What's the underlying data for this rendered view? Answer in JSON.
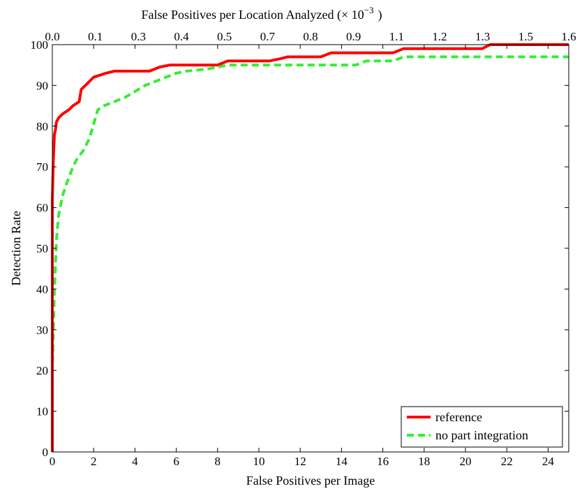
{
  "chart_data": {
    "type": "line",
    "title": "",
    "xlabel": "False Positives per Image",
    "ylabel": "Detection Rate",
    "x2label": "False Positives per Location Analyzed (",
    "x2label_unit": "× 10",
    "x2label_exp": "−3",
    "x2label_close": ")",
    "xlim": [
      0,
      25
    ],
    "ylim": [
      0,
      100
    ],
    "x2lim": [
      0,
      1.6
    ],
    "xticks": [
      "0",
      "2",
      "4",
      "6",
      "8",
      "10",
      "12",
      "14",
      "16",
      "18",
      "20",
      "22",
      "24"
    ],
    "yticks": [
      "0",
      "10",
      "20",
      "30",
      "40",
      "50",
      "60",
      "70",
      "80",
      "90",
      "100"
    ],
    "x2ticks": [
      "0.0",
      "0.1",
      "0.3",
      "0.4",
      "0.5",
      "0.7",
      "0.8",
      "0.9",
      "1.1",
      "1.2",
      "1.3",
      "1.5",
      "1.6"
    ],
    "grid": false,
    "legend_position": "bottom-right",
    "series": [
      {
        "name": "reference",
        "color": "#ff0000",
        "style": "solid",
        "x": [
          0,
          0,
          0.05,
          0.1,
          0.15,
          0.2,
          0.3,
          0.5,
          0.8,
          1.0,
          1.3,
          1.4,
          1.6,
          1.8,
          2.0,
          2.3,
          2.6,
          3.0,
          4.0,
          4.7,
          5.2,
          5.7,
          7.2,
          8.0,
          8.5,
          10.5,
          11.0,
          11.4,
          13.0,
          13.5,
          16.5,
          17.0,
          20.8,
          21.2,
          25.0
        ],
        "y": [
          0,
          62,
          72,
          78,
          79,
          81,
          82,
          83,
          84,
          85,
          86,
          89,
          90,
          91,
          92,
          92.5,
          93,
          93.5,
          93.5,
          93.5,
          94.5,
          95,
          95,
          95,
          96,
          96,
          96.5,
          97,
          97,
          98,
          98,
          99,
          99,
          100,
          100
        ]
      },
      {
        "name": "no part integration",
        "color": "#33ee33",
        "style": "dashed",
        "x": [
          0,
          0,
          0.1,
          0.2,
          0.3,
          0.5,
          0.7,
          1.0,
          1.2,
          1.5,
          1.8,
          2.2,
          2.5,
          3.0,
          3.5,
          4.0,
          4.5,
          5.0,
          5.5,
          6.0,
          6.5,
          7.5,
          8.5,
          11.0,
          14.7,
          15.2,
          16.5,
          17.0,
          25.0
        ],
        "y": [
          0,
          20,
          40,
          52,
          58,
          63,
          66,
          70,
          72,
          74,
          77,
          84,
          85,
          86,
          87,
          88.5,
          90,
          91,
          92,
          93,
          93.5,
          94,
          95,
          95,
          95,
          96,
          96,
          97,
          97
        ]
      }
    ]
  }
}
